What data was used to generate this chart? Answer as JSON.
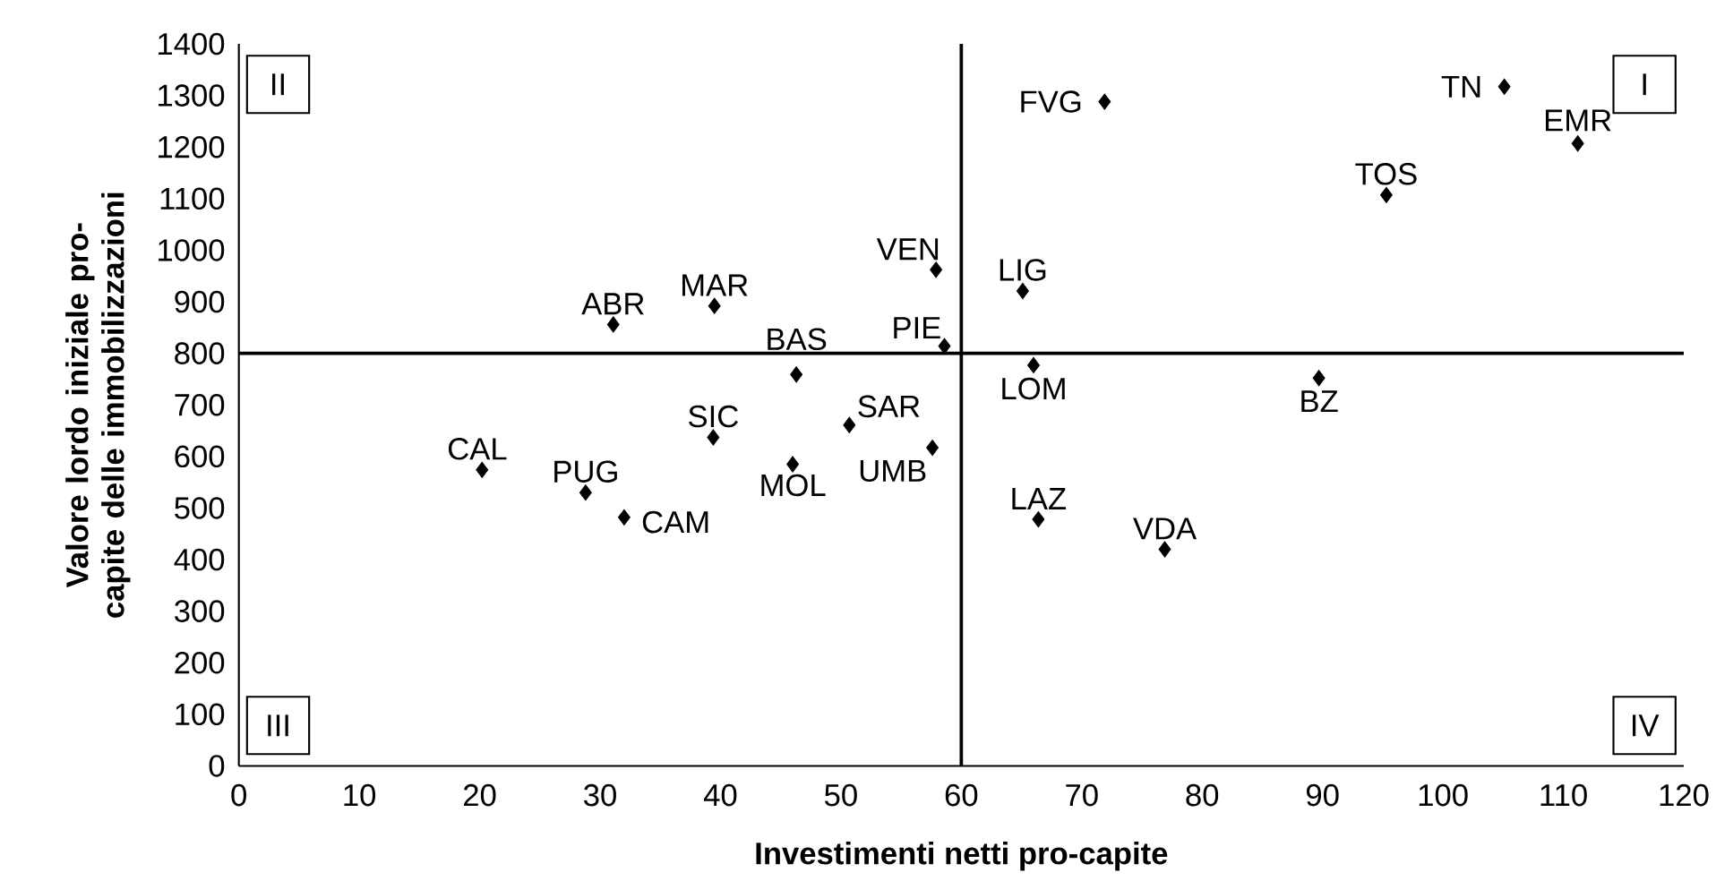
{
  "chart_data": {
    "type": "scatter",
    "xlabel": "Investimenti netti pro-capite",
    "ylabel": "Valore lordo iniziale pro-capite delle immobilizzazioni",
    "x": [
      31.1,
      39.5,
      46.3,
      50.7,
      39.4,
      71.9,
      105.1,
      111.2,
      95.3,
      57.9,
      65.1,
      58.6,
      66.0,
      89.7,
      20.2,
      28.8,
      32.0,
      46.0,
      57.6,
      66.4,
      76.9
    ],
    "series": [
      {
        "color": "#000000",
        "values": [
          856,
          892,
          759,
          661,
          637,
          1288,
          1317,
          1207,
          1107,
          962,
          921,
          814,
          777,
          752,
          574,
          530,
          482,
          585,
          617,
          478,
          420
        ]
      }
    ],
    "marker": "diamond",
    "grid": false,
    "xlim": [
      0,
      120
    ],
    "xticks": [
      0,
      10,
      20,
      30,
      40,
      50,
      60,
      70,
      80,
      90,
      100,
      110,
      120
    ],
    "ylim": [
      0,
      1400
    ],
    "yticks": [
      0,
      100,
      200,
      300,
      400,
      500,
      600,
      700,
      800,
      900,
      1000,
      1100,
      1200,
      1300,
      1400
    ],
    "ref_lines": [
      {
        "axis": "x",
        "value": 60
      },
      {
        "axis": "y",
        "value": 800
      }
    ],
    "annotations": [
      "I",
      "II",
      "III",
      "IV",
      {
        "text": "ABR",
        "x": 31.1,
        "y": 856
      },
      {
        "text": "MAR",
        "x": 39.5,
        "y": 892
      },
      {
        "text": "BAS",
        "x": 46.3,
        "y": 759
      },
      {
        "text": "SAR",
        "x": 50.7,
        "y": 661
      },
      {
        "text": "SIC",
        "x": 39.4,
        "y": 637
      },
      {
        "text": "FVG",
        "x": 71.9,
        "y": 1288
      },
      {
        "text": "TN",
        "x": 105.1,
        "y": 1317
      },
      {
        "text": "EMR",
        "x": 111.2,
        "y": 1207
      },
      {
        "text": "TOS",
        "x": 95.3,
        "y": 1107
      },
      {
        "text": "VEN",
        "x": 57.9,
        "y": 962
      },
      {
        "text": "LIG",
        "x": 65.1,
        "y": 921
      },
      {
        "text": "PIE",
        "x": 58.6,
        "y": 814
      },
      {
        "text": "LOM",
        "x": 66.0,
        "y": 777
      },
      {
        "text": "BZ",
        "x": 89.7,
        "y": 752
      },
      {
        "text": "CAL",
        "x": 20.2,
        "y": 574
      },
      {
        "text": "PUG",
        "x": 28.8,
        "y": 530
      },
      {
        "text": "CAM",
        "x": 32.0,
        "y": 482
      },
      {
        "text": "MOL",
        "x": 46.0,
        "y": 585
      },
      {
        "text": "UMB",
        "x": 57.6,
        "y": 617
      },
      {
        "text": "LAZ",
        "x": 66.4,
        "y": 478
      },
      {
        "text": "VDA",
        "x": 76.9,
        "y": 420
      }
    ]
  }
}
